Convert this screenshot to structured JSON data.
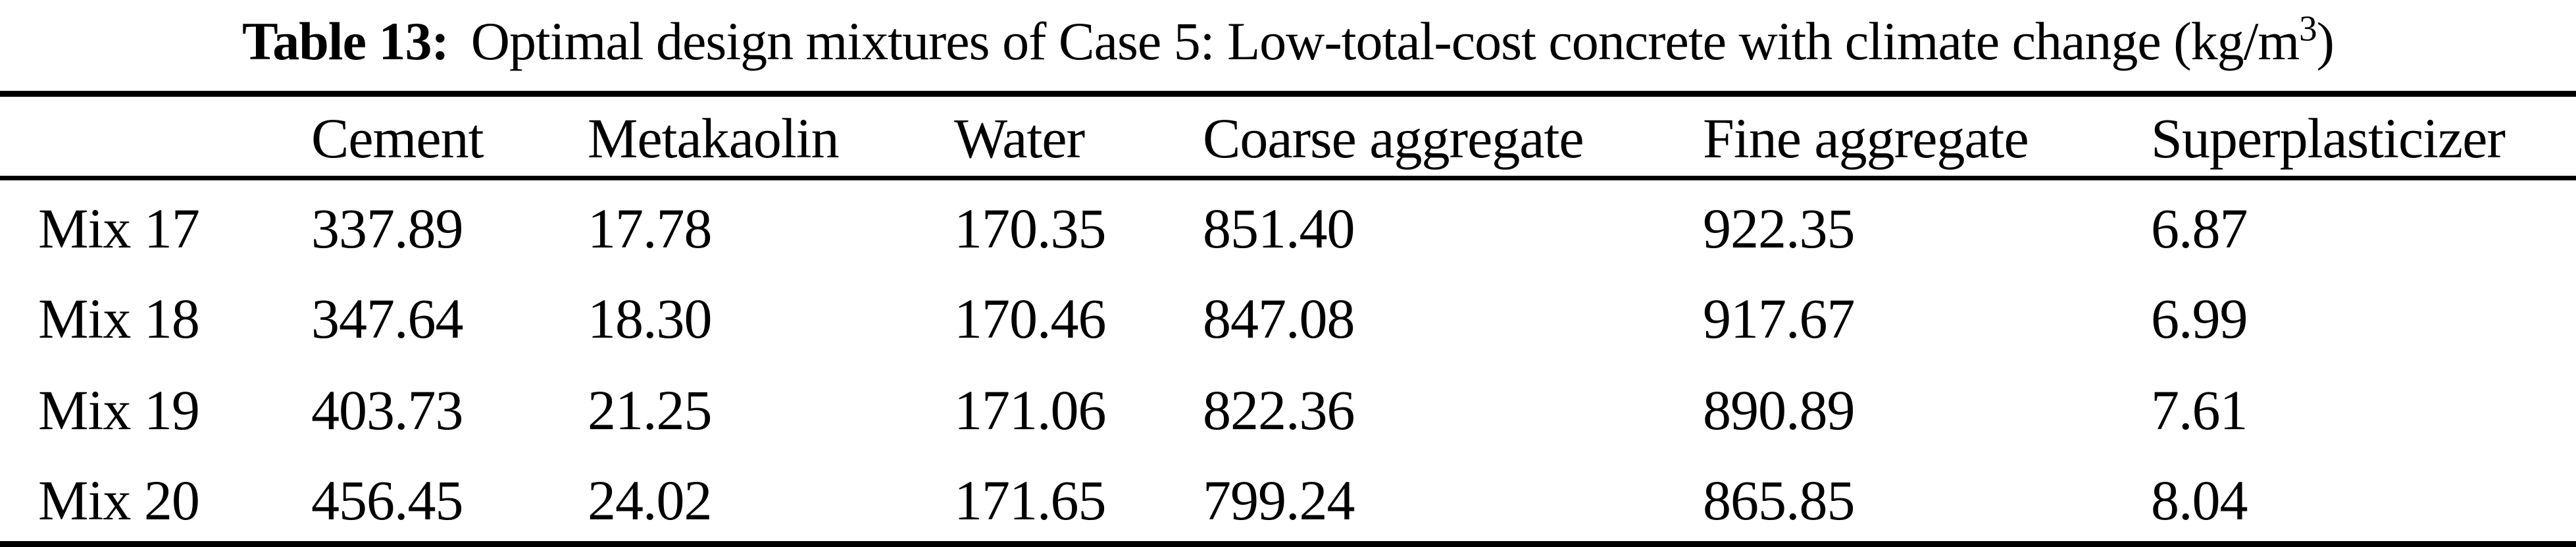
{
  "title": {
    "label": "Table 13:",
    "body": "Optimal design mixtures of Case 5: Low-total-cost concrete with climate change (kg/m",
    "superscript": "3",
    "suffix": ")"
  },
  "table": {
    "columns": [
      "",
      "Cement",
      "Metakaolin",
      "Water",
      "Coarse aggregate",
      "Fine aggregate",
      "Superplasticizer"
    ],
    "rows": [
      {
        "label": "Mix 17",
        "values": [
          "337.89",
          "17.78",
          "170.35",
          "851.40",
          "922.35",
          "6.87"
        ]
      },
      {
        "label": "Mix 18",
        "values": [
          "347.64",
          "18.30",
          "170.46",
          "847.08",
          "917.67",
          "6.99"
        ]
      },
      {
        "label": "Mix 19",
        "values": [
          "403.73",
          "21.25",
          "171.06",
          "822.36",
          "890.89",
          "7.61"
        ]
      },
      {
        "label": "Mix 20",
        "values": [
          "456.45",
          "24.02",
          "171.65",
          "799.24",
          "865.85",
          "8.04"
        ]
      }
    ]
  },
  "colors": {
    "background": "#ffffff",
    "text": "#000000",
    "rule": "#000000"
  }
}
